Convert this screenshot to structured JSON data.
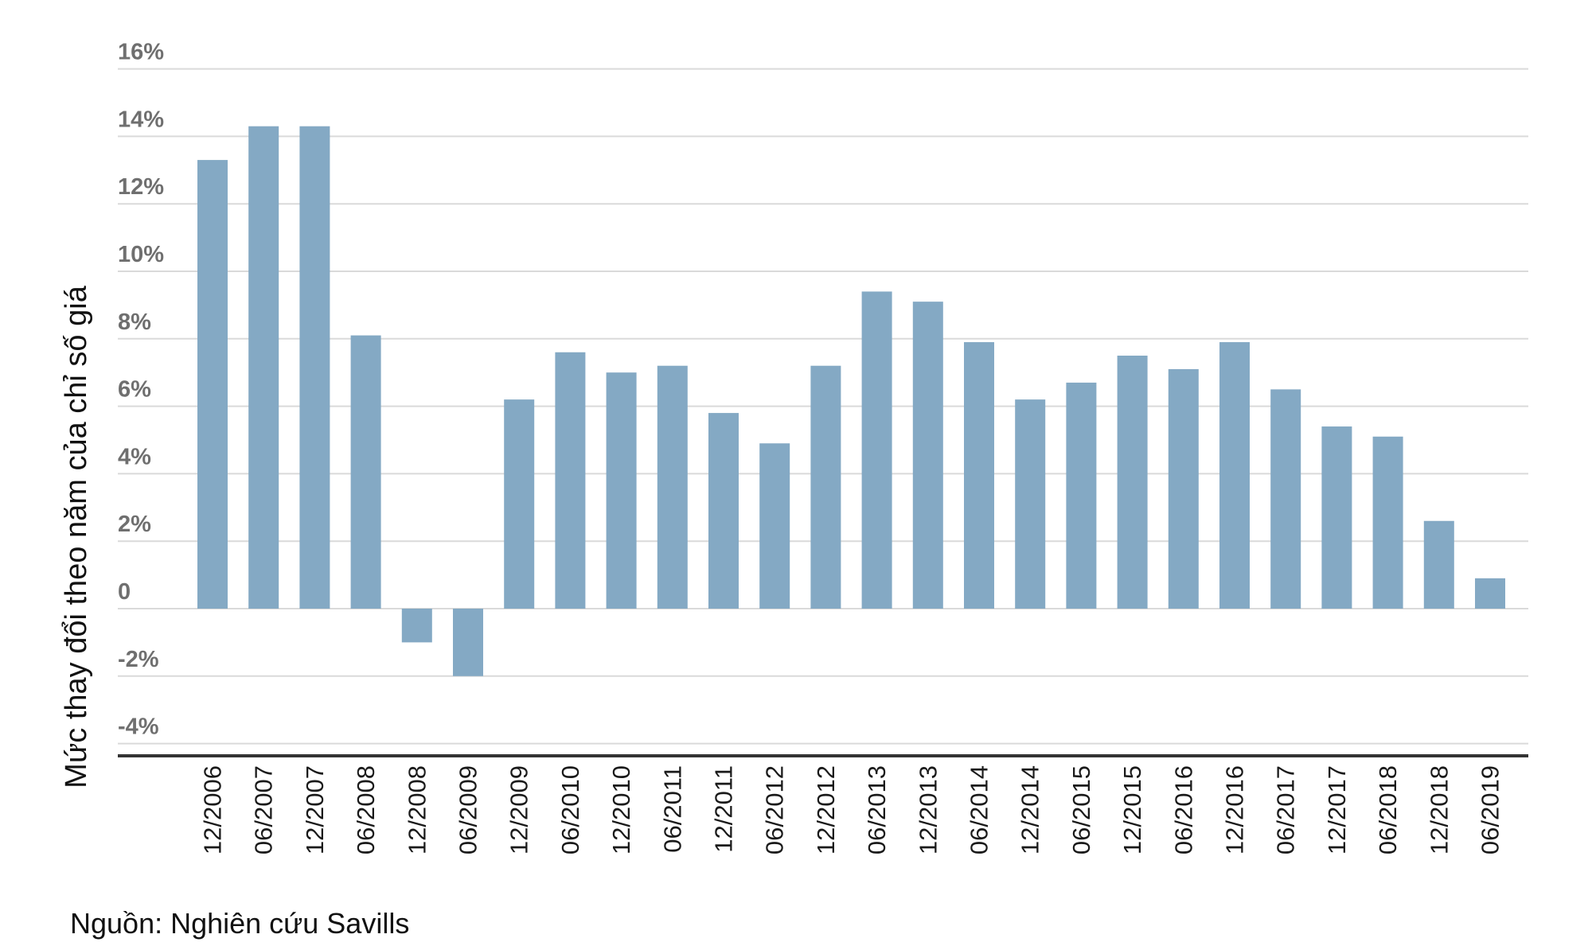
{
  "chart_data": {
    "type": "bar",
    "title": "",
    "xlabel": "",
    "ylabel": "Mức thay đổi theo năm của chỉ số giá",
    "ylim": [
      -4,
      16
    ],
    "yticks": [
      16,
      14,
      12,
      10,
      8,
      6,
      4,
      2,
      0,
      -2,
      -4
    ],
    "ytick_labels": [
      "16%",
      "14%",
      "12%",
      "10%",
      "8%",
      "6%",
      "4%",
      "2%",
      "0",
      "-2%",
      "-4%"
    ],
    "grid": true,
    "legend": "none",
    "bar_color": "#84a9c4",
    "categories": [
      "12/2006",
      "06/2007",
      "12/2007",
      "06/2008",
      "12/2008",
      "06/2009",
      "12/2009",
      "06/2010",
      "12/2010",
      "06/2011",
      "12/2011",
      "06/2012",
      "12/2012",
      "06/2013",
      "12/2013",
      "06/2014",
      "12/2014",
      "06/2015",
      "12/2015",
      "06/2016",
      "12/2016",
      "06/2017",
      "12/2017",
      "06/2018",
      "12/2018",
      "06/2019"
    ],
    "values": [
      13.3,
      14.3,
      14.3,
      8.1,
      -1.0,
      -2.0,
      6.2,
      7.6,
      7.0,
      7.2,
      5.8,
      4.9,
      7.2,
      9.4,
      9.1,
      7.9,
      6.2,
      6.7,
      7.5,
      7.1,
      7.9,
      6.5,
      5.4,
      5.1,
      2.6,
      0.9
    ]
  },
  "source": "Nguồn: Nghiên cứu Savills"
}
